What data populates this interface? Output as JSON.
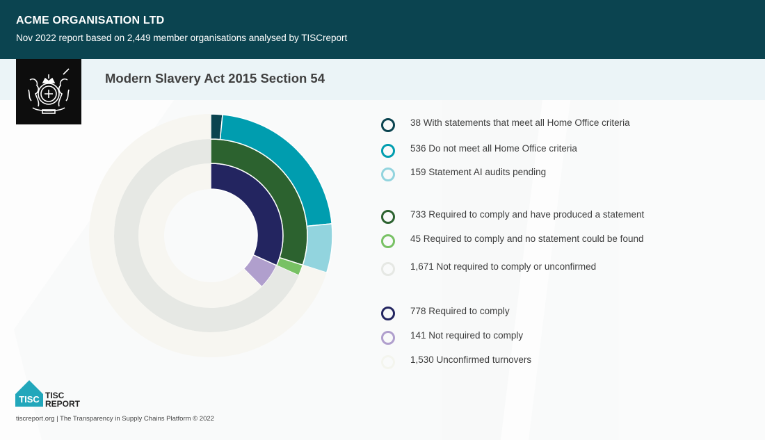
{
  "header": {
    "org_name": "ACME ORGANISATION LTD",
    "subtitle": "Nov 2022 report based on 2,449 member organisations analysed by TISCreport"
  },
  "section": {
    "title": "Modern Slavery Act 2015 Section 54",
    "emblem": "royal-coat-of-arms-icon"
  },
  "chart_data": {
    "type": "sunburst",
    "title": "Modern Slavery Act 2015 Section 54",
    "total": 2449,
    "start_angle": "12 o'clock",
    "direction": "clockwise",
    "rings": [
      {
        "name": "inner",
        "segments": [
          {
            "label": "Required to comply",
            "value": 778,
            "color": "#232560"
          },
          {
            "label": "Not required to comply",
            "value": 141,
            "color": "#b09fcd"
          },
          {
            "label": "Unconfirmed turnovers",
            "value": 1530,
            "color": "#f7f6f1"
          }
        ]
      },
      {
        "name": "middle",
        "segments": [
          {
            "label": "Required to comply and have produced a statement",
            "value": 733,
            "color": "#2c622f"
          },
          {
            "label": "Required to comply and no statement could be found",
            "value": 45,
            "color": "#78c164"
          },
          {
            "label": "Not required to comply or unconfirmed",
            "value": 1671,
            "color": "#e6e8e4"
          }
        ]
      },
      {
        "name": "outer",
        "segments": [
          {
            "label": "With statements that meet all Home Office criteria",
            "value": 38,
            "color": "#0b4450"
          },
          {
            "label": "Do not meet all Home Office criteria",
            "value": 536,
            "color": "#009daf"
          },
          {
            "label": "Statement AI audits pending",
            "value": 159,
            "color": "#92d4de"
          },
          {
            "label": "Remainder",
            "value": 1716,
            "color": "#f7f6f1"
          }
        ]
      }
    ]
  },
  "legend": {
    "items": [
      {
        "text": "38 With statements that meet all Home Office criteria",
        "color": "#0b4450"
      },
      {
        "text": "536 Do not meet all Home Office criteria",
        "color": "#009daf"
      },
      {
        "text": "159 Statement AI audits pending",
        "color": "#92d4de"
      },
      {
        "text": "733 Required to comply and have produced a statement",
        "color": "#2c622f"
      },
      {
        "text": "45 Required to comply and no statement could be found",
        "color": "#78c164"
      },
      {
        "text": "1,671 Not required to comply or unconfirmed",
        "color": "#e6e8e4"
      },
      {
        "text": "778 Required to comply",
        "color": "#232560"
      },
      {
        "text": "141 Not required to comply",
        "color": "#b09fcd"
      },
      {
        "text": "1,530 Unconfirmed turnovers",
        "color": "#f4f5ee"
      }
    ]
  },
  "footer": {
    "logo_mark": "TISC",
    "logo_line1": "TISC",
    "logo_line2": "REPORT",
    "text": "tiscreport.org | The Transparency in Supply Chains Platform © 2022"
  },
  "colors": {
    "header_bg": "#0b4450",
    "section_bg": "#ebf4f7",
    "brand_teal": "#22a7bb"
  }
}
